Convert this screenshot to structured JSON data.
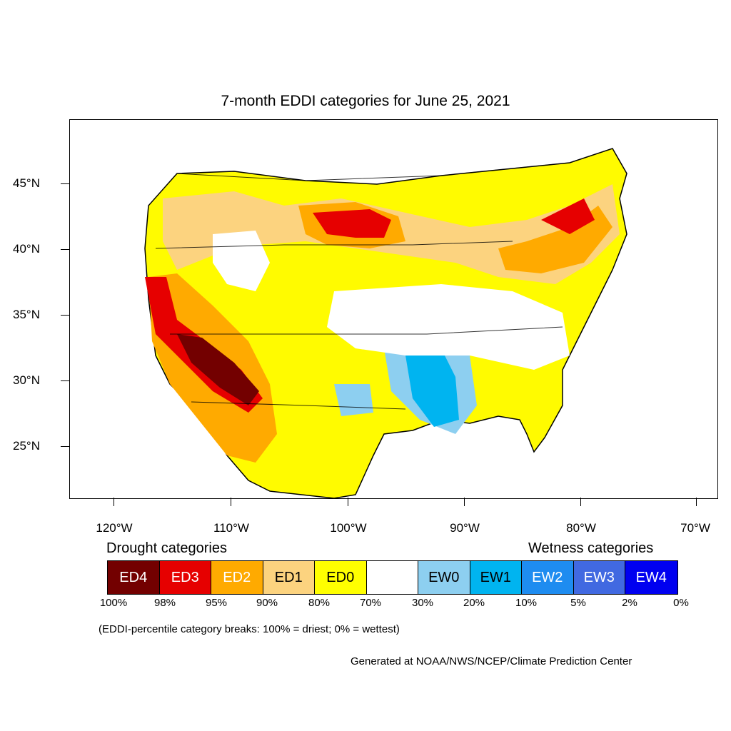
{
  "title": "7-month EDDI categories for June 25, 2021",
  "map": {
    "lat_labels": [
      "45°N",
      "40°N",
      "35°N",
      "30°N",
      "25°N"
    ],
    "lon_labels": [
      "120°W",
      "110°W",
      "100°W",
      "90°W",
      "80°W",
      "70°W"
    ]
  },
  "legend": {
    "drought_heading": "Drought categories",
    "wetness_heading": "Wetness categories",
    "categories": [
      {
        "label": "ED4",
        "color": "#730000",
        "text_color": "#ffffff"
      },
      {
        "label": "ED3",
        "color": "#e60000",
        "text_color": "#ffffff"
      },
      {
        "label": "ED2",
        "color": "#ffaa00",
        "text_color": "#ffffff"
      },
      {
        "label": "ED1",
        "color": "#fcd37f",
        "text_color": "#000000"
      },
      {
        "label": "ED0",
        "color": "#ffff00",
        "text_color": "#000000"
      },
      {
        "label": "",
        "color": "#ffffff",
        "text_color": "#000000"
      },
      {
        "label": "EW0",
        "color": "#8dcff0",
        "text_color": "#000000"
      },
      {
        "label": "EW1",
        "color": "#00b4f0",
        "text_color": "#000000"
      },
      {
        "label": "EW2",
        "color": "#1e8cf0",
        "text_color": "#ffffff"
      },
      {
        "label": "EW3",
        "color": "#4169e1",
        "text_color": "#ffffff"
      },
      {
        "label": "EW4",
        "color": "#0000f0",
        "text_color": "#ffffff"
      }
    ],
    "breaks": [
      "100%",
      "98%",
      "95%",
      "90%",
      "80%",
      "70%",
      "30%",
      "20%",
      "10%",
      "5%",
      "2%",
      "0%"
    ]
  },
  "note": "(EDDI-percentile category breaks: 100% = driest; 0% = wettest)",
  "credit": "Generated at NOAA/NWS/NCEP/Climate Prediction Center"
}
